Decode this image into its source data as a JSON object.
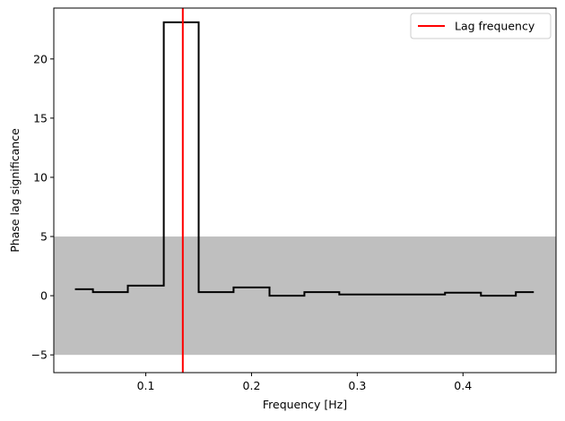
{
  "chart_data": {
    "type": "line",
    "subtype": "step",
    "xlabel": "Frequency [Hz]",
    "ylabel": "Phase lag significance",
    "xlim": [
      0.013,
      0.488
    ],
    "ylim": [
      -6.5,
      24.3
    ],
    "x_ticks": [
      0.1,
      0.2,
      0.3,
      0.4
    ],
    "x_tick_labels": [
      "0.1",
      "0.2",
      "0.3",
      "0.4"
    ],
    "y_ticks": [
      -5,
      0,
      5,
      10,
      15,
      20
    ],
    "y_tick_labels": [
      "−5",
      "0",
      "5",
      "10",
      "15",
      "20"
    ],
    "grid": false,
    "legend": {
      "placement": "top-right",
      "entries": [
        "Lag frequency"
      ]
    },
    "significance_band": {
      "ymin": -5,
      "ymax": 5,
      "color": "#bfbfbf"
    },
    "lag_frequency": {
      "name": "Lag frequency",
      "x": 0.135,
      "color": "#ff0000"
    },
    "series": [
      {
        "color": "#000000",
        "bins": [
          {
            "x0": 0.033,
            "x1": 0.05,
            "y": 0.55
          },
          {
            "x0": 0.05,
            "x1": 0.083,
            "y": 0.3
          },
          {
            "x0": 0.083,
            "x1": 0.117,
            "y": 0.85
          },
          {
            "x0": 0.117,
            "x1": 0.15,
            "y": 23.1
          },
          {
            "x0": 0.15,
            "x1": 0.183,
            "y": 0.3
          },
          {
            "x0": 0.183,
            "x1": 0.217,
            "y": 0.7
          },
          {
            "x0": 0.217,
            "x1": 0.25,
            "y": 0.0
          },
          {
            "x0": 0.25,
            "x1": 0.283,
            "y": 0.3
          },
          {
            "x0": 0.283,
            "x1": 0.317,
            "y": 0.1
          },
          {
            "x0": 0.317,
            "x1": 0.35,
            "y": 0.1
          },
          {
            "x0": 0.35,
            "x1": 0.383,
            "y": 0.1
          },
          {
            "x0": 0.383,
            "x1": 0.417,
            "y": 0.25
          },
          {
            "x0": 0.417,
            "x1": 0.45,
            "y": 0.0
          },
          {
            "x0": 0.45,
            "x1": 0.467,
            "y": 0.3
          }
        ]
      }
    ]
  }
}
